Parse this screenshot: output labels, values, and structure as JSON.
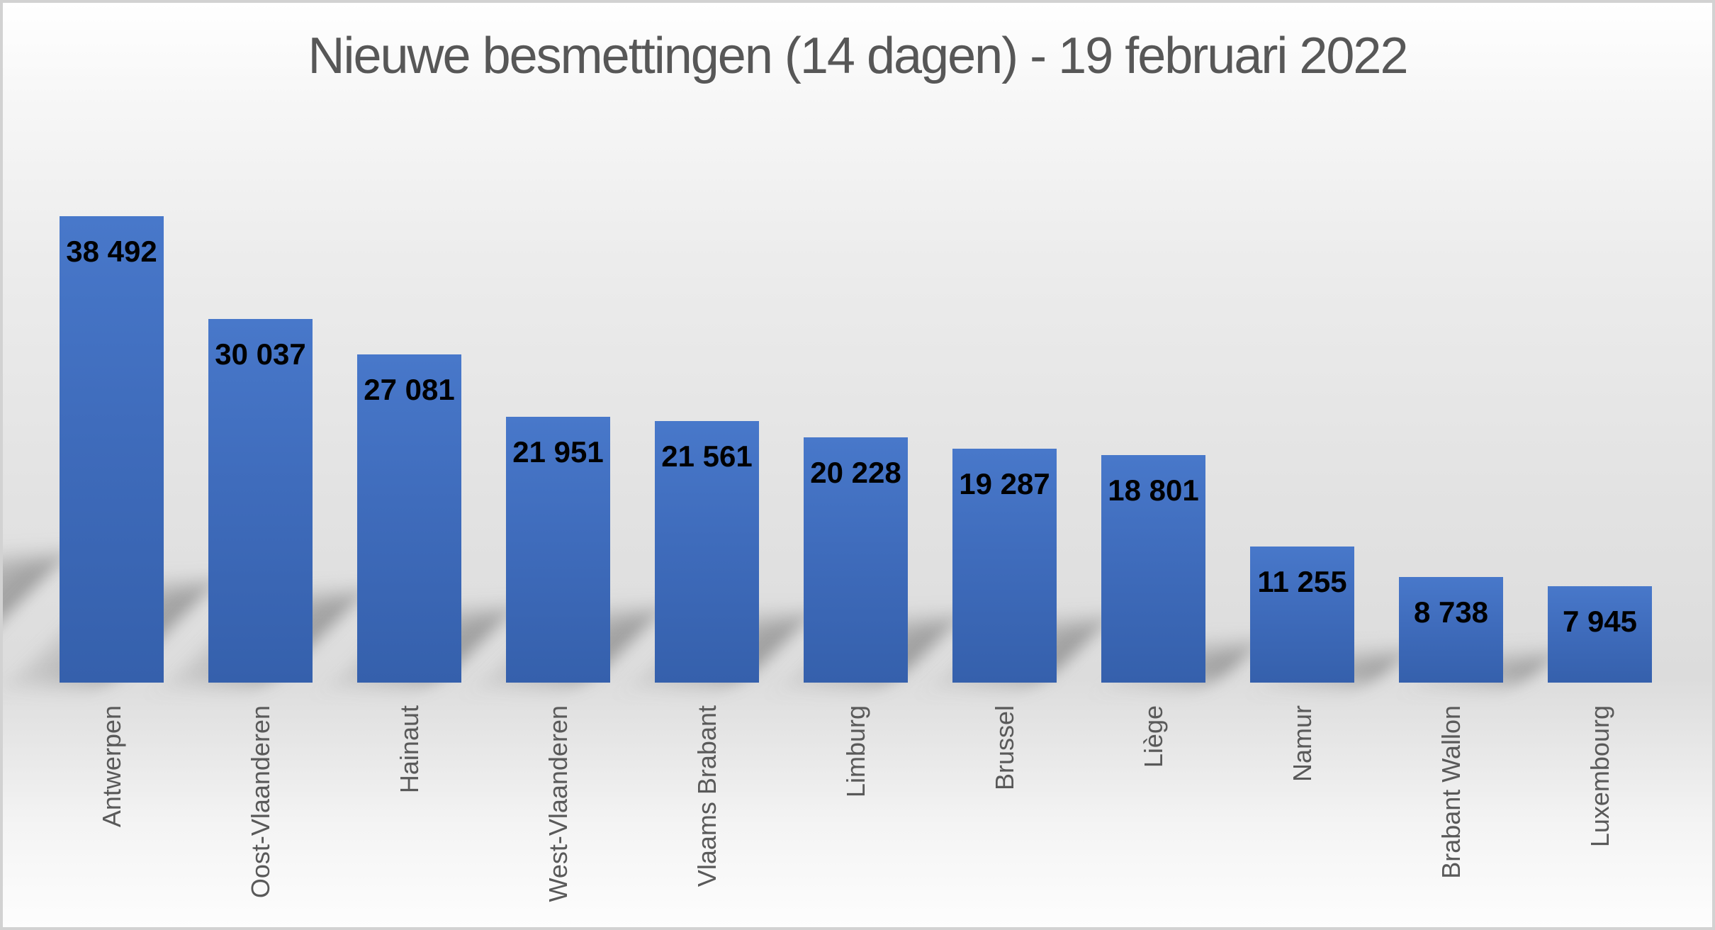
{
  "chart_data": {
    "type": "bar",
    "title": "Nieuwe besmettingen (14 dagen) - 19 februari 2022",
    "categories": [
      "Antwerpen",
      "Oost-Vlaanderen",
      "Hainaut",
      "West-Vlaanderen",
      "Vlaams Brabant",
      "Limburg",
      "Brussel",
      "Liège",
      "Namur",
      "Brabant Wallon",
      "Luxembourg"
    ],
    "values": [
      38492,
      30037,
      27081,
      21951,
      21561,
      20228,
      19287,
      18801,
      11255,
      8738,
      7945
    ],
    "value_labels": [
      "38 492",
      "30 037",
      "27 081",
      "21 951",
      "21 561",
      "20 228",
      "19 287",
      "18 801",
      "11 255",
      "8 738",
      "7 945"
    ],
    "xlabel": "",
    "ylabel": "",
    "ylim": [
      0,
      40000
    ],
    "grid": false,
    "legend": "none",
    "value_labels_position": "inside-top",
    "category_labels_rotation": "bottom-to-top",
    "colors": {
      "bar_top": "#4878ca",
      "bar_bottom": "#3560ac",
      "value_label": "#000000",
      "category_label": "#595959",
      "title": "#575757",
      "shadow": "#5f5f5f",
      "frame_border": "#d2d2d2",
      "background_mid": "#dcdcdc"
    }
  }
}
